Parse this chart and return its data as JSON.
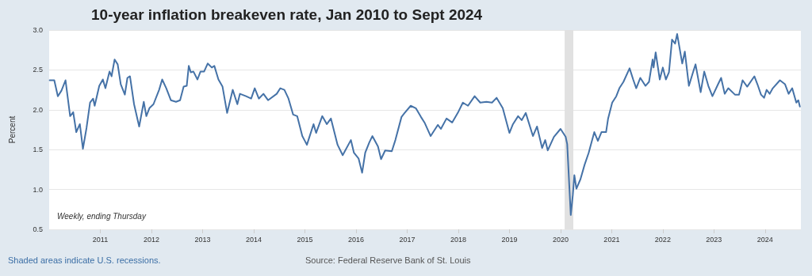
{
  "chart_data": {
    "type": "line",
    "title": "10-year inflation breakeven rate, Jan 2010 to Sept 2024",
    "ylabel": "Percent",
    "annotations": [
      "Weekly, ending Thursday",
      "Shaded areas indicate U.S. recessions.",
      "Source: Federal Reserve Bank of St. Louis"
    ],
    "xlim": [
      2010.0,
      2024.7
    ],
    "xticks": [
      2011,
      2012,
      2013,
      2014,
      2015,
      2016,
      2017,
      2018,
      2019,
      2020,
      2021,
      2022,
      2023,
      2024
    ],
    "ylim": [
      0.5,
      3.0
    ],
    "yticks": [
      0.5,
      {
        "value": 1.0,
        "label": "1.0"
      },
      1.5,
      {
        "value": 2.0,
        "label": "2.0"
      },
      2.5,
      {
        "value": 3.0,
        "label": "3.0"
      }
    ],
    "grid": "y",
    "marker": "none",
    "line_style": "solid",
    "bands": [
      {
        "axis": "x",
        "from": 2020.08,
        "to": 2020.25,
        "color": "#e1e1e1"
      }
    ],
    "series": [
      {
        "color": "#4572a7",
        "x": [
          2010.01,
          2010.1,
          2010.17,
          2010.24,
          2010.32,
          2010.41,
          2010.47,
          2010.53,
          2010.6,
          2010.66,
          2010.73,
          2010.8,
          2010.86,
          2010.89,
          2010.98,
          2011.05,
          2011.1,
          2011.18,
          2011.22,
          2011.28,
          2011.34,
          2011.4,
          2011.48,
          2011.53,
          2011.58,
          2011.66,
          2011.76,
          2011.85,
          2011.9,
          2011.96,
          2012.04,
          2012.15,
          2012.21,
          2012.29,
          2012.38,
          2012.48,
          2012.56,
          2012.63,
          2012.69,
          2012.73,
          2012.77,
          2012.82,
          2012.9,
          2012.96,
          2013.03,
          2013.1,
          2013.18,
          2013.23,
          2013.31,
          2013.39,
          2013.48,
          2013.59,
          2013.68,
          2013.73,
          2013.85,
          2013.95,
          2014.02,
          2014.1,
          2014.19,
          2014.28,
          2014.45,
          2014.52,
          2014.6,
          2014.68,
          2014.77,
          2014.85,
          2014.95,
          2015.0,
          2015.04,
          2015.17,
          2015.22,
          2015.34,
          2015.43,
          2015.51,
          2015.64,
          2015.74,
          2015.9,
          2015.96,
          2016.05,
          2016.12,
          2016.18,
          2016.26,
          2016.32,
          2016.43,
          2016.49,
          2016.57,
          2016.7,
          2016.77,
          2016.89,
          2016.95,
          2017.07,
          2017.17,
          2017.27,
          2017.34,
          2017.46,
          2017.6,
          2017.66,
          2017.77,
          2017.88,
          2017.99,
          2018.09,
          2018.19,
          2018.32,
          2018.43,
          2018.55,
          2018.66,
          2018.75,
          2018.87,
          2019.0,
          2019.07,
          2019.17,
          2019.24,
          2019.32,
          2019.46,
          2019.54,
          2019.64,
          2019.7,
          2019.75,
          2019.87,
          2020.0,
          2020.1,
          2020.13,
          2020.2,
          2020.24,
          2020.27,
          2020.31,
          2020.39,
          2020.47,
          2020.55,
          2020.66,
          2020.73,
          2020.8,
          2020.89,
          2020.93,
          2021.01,
          2021.09,
          2021.15,
          2021.23,
          2021.35,
          2021.42,
          2021.48,
          2021.56,
          2021.66,
          2021.73,
          2021.8,
          2021.82,
          2021.86,
          2021.94,
          2022.0,
          2022.06,
          2022.12,
          2022.18,
          2022.24,
          2022.28,
          2022.38,
          2022.43,
          2022.51,
          2022.59,
          2022.64,
          2022.74,
          2022.81,
          2022.89,
          2022.97,
          2023.08,
          2023.14,
          2023.21,
          2023.28,
          2023.41,
          2023.49,
          2023.56,
          2023.65,
          2023.79,
          2023.85,
          2023.92,
          2023.98,
          2024.03,
          2024.09,
          2024.15,
          2024.29,
          2024.39,
          2024.46,
          2024.53,
          2024.61,
          2024.65,
          2024.68
        ],
        "values": [
          2.37,
          2.37,
          2.17,
          2.24,
          2.37,
          1.92,
          1.97,
          1.72,
          1.82,
          1.51,
          1.77,
          2.09,
          2.14,
          2.05,
          2.3,
          2.38,
          2.27,
          2.48,
          2.42,
          2.63,
          2.57,
          2.32,
          2.19,
          2.4,
          2.42,
          2.07,
          1.79,
          2.1,
          1.92,
          2.02,
          2.07,
          2.25,
          2.38,
          2.27,
          2.12,
          2.1,
          2.12,
          2.29,
          2.3,
          2.55,
          2.47,
          2.48,
          2.38,
          2.48,
          2.48,
          2.58,
          2.53,
          2.55,
          2.38,
          2.29,
          1.96,
          2.25,
          2.07,
          2.2,
          2.17,
          2.14,
          2.27,
          2.14,
          2.2,
          2.12,
          2.2,
          2.27,
          2.25,
          2.14,
          1.94,
          1.92,
          1.67,
          1.61,
          1.56,
          1.82,
          1.71,
          1.92,
          1.82,
          1.89,
          1.56,
          1.43,
          1.62,
          1.46,
          1.39,
          1.21,
          1.46,
          1.59,
          1.67,
          1.54,
          1.38,
          1.49,
          1.48,
          1.62,
          1.91,
          1.96,
          2.05,
          2.02,
          1.91,
          1.84,
          1.67,
          1.81,
          1.76,
          1.89,
          1.84,
          1.96,
          2.09,
          2.05,
          2.17,
          2.09,
          2.1,
          2.09,
          2.15,
          2.02,
          1.71,
          1.82,
          1.92,
          1.87,
          1.96,
          1.67,
          1.79,
          1.52,
          1.62,
          1.49,
          1.66,
          1.76,
          1.66,
          1.57,
          0.68,
          0.93,
          1.18,
          1.01,
          1.13,
          1.31,
          1.46,
          1.72,
          1.61,
          1.72,
          1.72,
          1.89,
          2.09,
          2.17,
          2.27,
          2.35,
          2.52,
          2.38,
          2.27,
          2.4,
          2.3,
          2.35,
          2.63,
          2.53,
          2.72,
          2.38,
          2.53,
          2.38,
          2.47,
          2.88,
          2.83,
          2.95,
          2.58,
          2.73,
          2.3,
          2.47,
          2.57,
          2.22,
          2.48,
          2.3,
          2.17,
          2.32,
          2.4,
          2.2,
          2.27,
          2.19,
          2.19,
          2.37,
          2.29,
          2.42,
          2.32,
          2.19,
          2.15,
          2.25,
          2.2,
          2.27,
          2.37,
          2.32,
          2.2,
          2.27,
          2.09,
          2.12,
          2.04
        ]
      }
    ]
  }
}
